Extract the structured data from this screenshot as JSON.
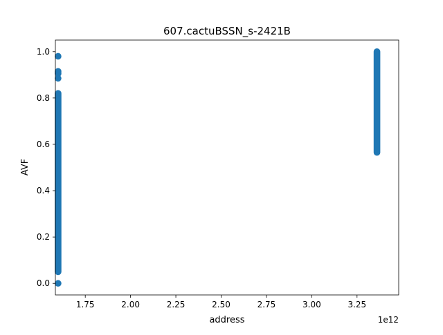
{
  "chart_data": {
    "type": "scatter",
    "title": "607.cactuBSSN_s-2421B",
    "xlabel": "address",
    "ylabel": "AVF",
    "x_offset_label": "1e12",
    "xlim": [
      1.585,
      3.48
    ],
    "ylim": [
      -0.05,
      1.05
    ],
    "x_ticks": [
      {
        "value": 1.75,
        "label": "1.75"
      },
      {
        "value": 2.0,
        "label": "2.00"
      },
      {
        "value": 2.25,
        "label": "2.25"
      },
      {
        "value": 2.5,
        "label": "2.50"
      },
      {
        "value": 2.75,
        "label": "2.75"
      },
      {
        "value": 3.0,
        "label": "3.00"
      },
      {
        "value": 3.25,
        "label": "3.25"
      }
    ],
    "y_ticks": [
      {
        "value": 0.0,
        "label": "0.0"
      },
      {
        "value": 0.2,
        "label": "0.2"
      },
      {
        "value": 0.4,
        "label": "0.4"
      },
      {
        "value": 0.6,
        "label": "0.6"
      },
      {
        "value": 0.8,
        "label": "0.8"
      },
      {
        "value": 1.0,
        "label": "1.0"
      }
    ],
    "grid": false,
    "marker_color": "#1f77b4",
    "clusters": [
      {
        "x": 1.6,
        "y_min": 0.05,
        "y_max": 0.82,
        "isolated_y": [
          0.0,
          0.885,
          0.905,
          0.91,
          0.915,
          0.98
        ]
      },
      {
        "x": 3.36,
        "y_min": 0.565,
        "y_max": 1.0,
        "isolated_y": []
      }
    ]
  }
}
